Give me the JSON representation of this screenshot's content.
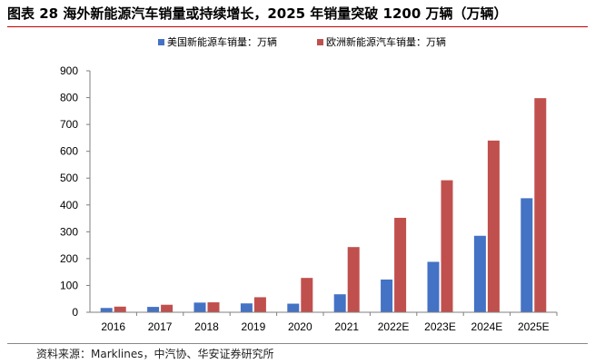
{
  "header": {
    "title": "图表 28 海外新能源汽车销量或持续增长，2025 年销量突破 1200 万辆（万辆）"
  },
  "footer": {
    "source": "资料来源：Marklines，中汽协、华安证券研究所"
  },
  "colors": {
    "us": "#4472c4",
    "eu": "#c0504d",
    "rule": "#c00000"
  },
  "chart_data": {
    "type": "bar",
    "categories": [
      "2016",
      "2017",
      "2018",
      "2019",
      "2020",
      "2021",
      "2022E",
      "2023E",
      "2024E",
      "2025E"
    ],
    "series": [
      {
        "name": "美国新能源车销量：万辆",
        "values": [
          16,
          20,
          36,
          33,
          32,
          67,
          122,
          188,
          285,
          425
        ]
      },
      {
        "name": "欧洲新能源汽车销量：万辆",
        "values": [
          21,
          28,
          37,
          56,
          128,
          243,
          352,
          492,
          640,
          798
        ]
      }
    ],
    "yticks": [
      "0",
      "100",
      "200",
      "300",
      "400",
      "500",
      "600",
      "700",
      "800",
      "900"
    ],
    "ylim": [
      0,
      900
    ],
    "legend": "top-center",
    "grid": false
  }
}
